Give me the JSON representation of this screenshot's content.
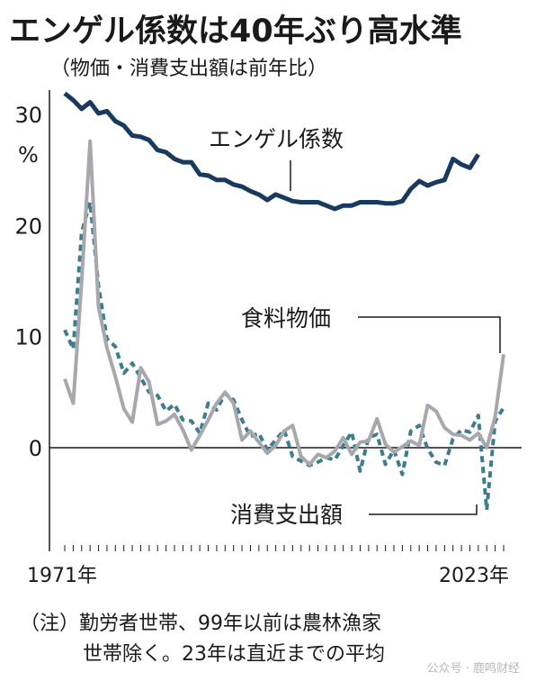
{
  "title": "エンゲル係数は40年ぶり高水準",
  "subtitle": "（物価・消費支出額は前年比）",
  "note_line1": "（注）勤労者世帯、99年以前は農林漁家",
  "note_line2": "世帯除く。23年は直近までの平均",
  "watermark": "公众号 · 鹿鸣财经",
  "colors": {
    "engel": "#173a5e",
    "food_price": "#a7a8ad",
    "consumption": "#3e7d8e",
    "axis": "#1a1a1a"
  },
  "chart_data": {
    "type": "line",
    "x_start_label": "1971年",
    "x_end_label": "2023年",
    "unit_label": "%",
    "xlim": [
      1971,
      2023
    ],
    "ylim": [
      -9,
      33
    ],
    "yticks": [
      0,
      10,
      20,
      30
    ],
    "zero_line": true,
    "x": [
      1971,
      1972,
      1973,
      1974,
      1975,
      1976,
      1977,
      1978,
      1979,
      1980,
      1981,
      1982,
      1983,
      1984,
      1985,
      1986,
      1987,
      1988,
      1989,
      1990,
      1991,
      1992,
      1993,
      1994,
      1995,
      1996,
      1997,
      1998,
      1999,
      2000,
      2001,
      2002,
      2003,
      2004,
      2005,
      2006,
      2007,
      2008,
      2009,
      2010,
      2011,
      2012,
      2013,
      2014,
      2015,
      2016,
      2017,
      2018,
      2019,
      2020,
      2021,
      2022,
      2023
    ],
    "series": [
      {
        "name": "エンゲル係数",
        "style": "solid",
        "values": [
          31.9,
          31.3,
          30.5,
          31.1,
          30.1,
          30.3,
          29.4,
          29.0,
          28.1,
          28.0,
          27.7,
          26.8,
          26.6,
          26.0,
          25.7,
          25.7,
          24.6,
          24.5,
          24.1,
          24.1,
          23.7,
          23.5,
          23.1,
          22.8,
          22.3,
          22.8,
          22.5,
          22.2,
          22.1,
          22.1,
          22.1,
          21.8,
          21.5,
          21.8,
          21.8,
          22.1,
          22.1,
          22.1,
          22.0,
          22.0,
          22.2,
          23.3,
          24.0,
          23.6,
          23.9,
          24.1,
          26.0,
          25.5,
          25.2,
          26.4,
          null,
          null,
          null
        ]
      },
      {
        "name": "食料物価",
        "style": "solid",
        "values": [
          6.2,
          4.0,
          15.0,
          27.6,
          12.7,
          9.0,
          6.4,
          3.5,
          2.3,
          7.2,
          5.9,
          2.1,
          2.4,
          3.0,
          1.6,
          -0.2,
          1.1,
          2.5,
          4.0,
          5.0,
          4.0,
          0.7,
          1.5,
          0.5,
          -0.5,
          0.2,
          1.5,
          2.0,
          -0.8,
          -1.5,
          -0.6,
          -0.9,
          -0.3,
          0.9,
          -0.6,
          0.5,
          0.6,
          2.6,
          0.3,
          -0.4,
          0.1,
          0.6,
          0.2,
          3.8,
          3.3,
          1.8,
          1.2,
          1.1,
          0.7,
          1.3,
          0.0,
          2.8,
          8.4
        ]
      },
      {
        "name": "消費支出額",
        "style": "dashed",
        "values": [
          10.6,
          8.9,
          19.4,
          22.1,
          14.6,
          9.8,
          9.1,
          6.7,
          7.6,
          6.3,
          5.0,
          4.7,
          3.3,
          3.9,
          2.5,
          2.4,
          1.3,
          4.0,
          3.4,
          4.9,
          4.3,
          2.5,
          1.0,
          1.3,
          -0.2,
          0.7,
          1.6,
          -0.8,
          -1.2,
          -1.6,
          -1.3,
          -0.9,
          -1.1,
          0.2,
          1.4,
          -2.1,
          0.9,
          1.2,
          -1.5,
          -0.2,
          -2.4,
          1.5,
          2.0,
          -0.1,
          -1.3,
          -1.6,
          0.8,
          1.6,
          1.4,
          2.9,
          -5.6,
          2.4,
          3.6
        ]
      }
    ],
    "callouts": {
      "engel": "エンゲル係数",
      "food_price": "食料物価",
      "consumption": "消費支出額"
    }
  }
}
